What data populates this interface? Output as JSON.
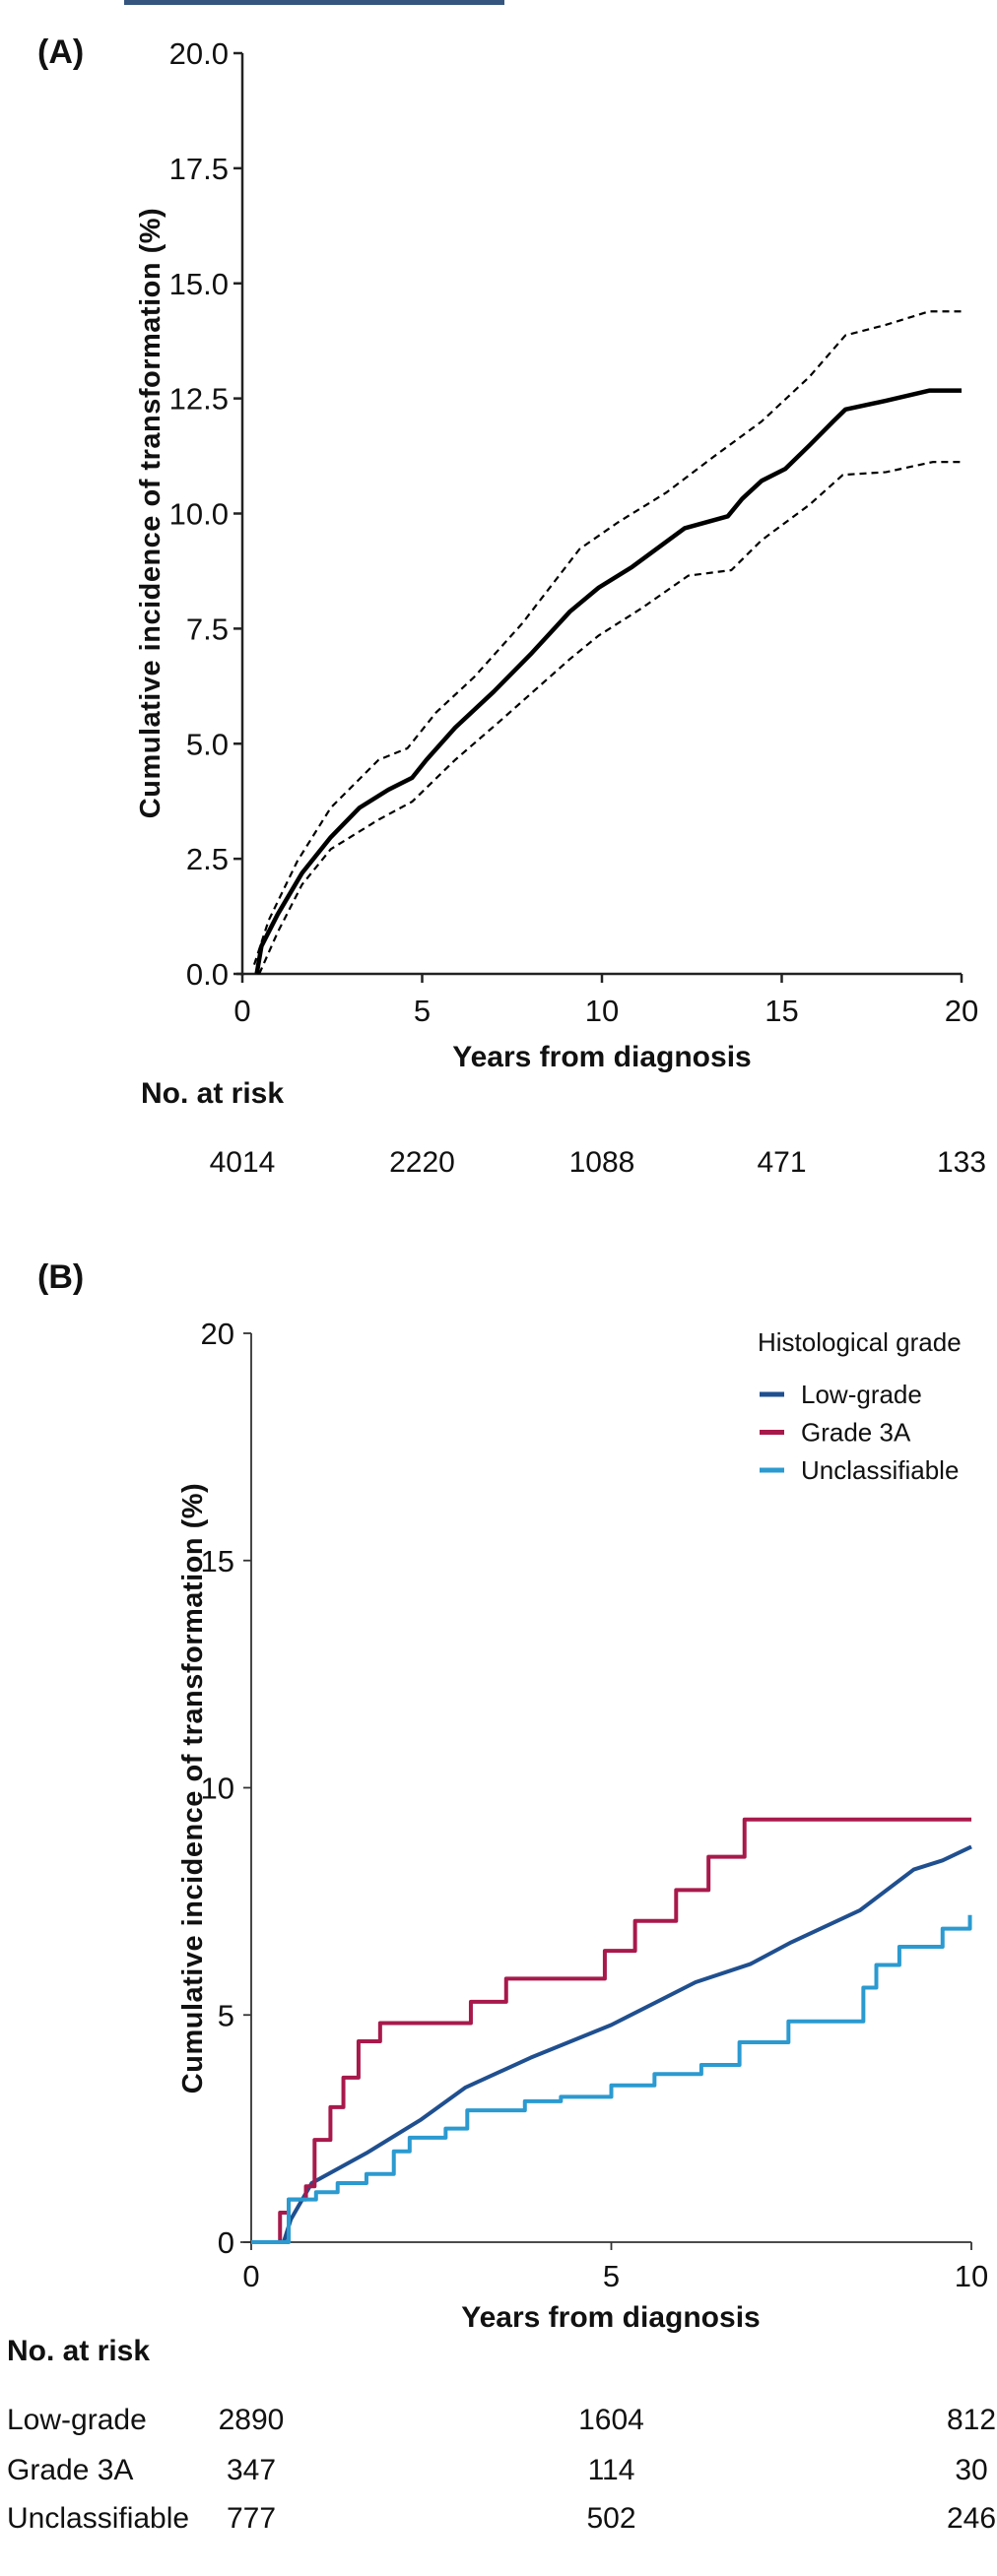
{
  "header_bar_color": "#35557f",
  "chart_data": [
    {
      "panel_label": "(A)",
      "type": "line",
      "xlabel": "Years from diagnosis",
      "ylabel": "Cumulative incidence of transformation (%)",
      "xlim": [
        0,
        20
      ],
      "ylim": [
        0,
        20
      ],
      "xticks": [
        "0",
        "5",
        "10",
        "15",
        "20"
      ],
      "xtick_values": [
        0,
        5,
        10,
        15,
        20
      ],
      "yticks": [
        "0.0",
        "2.5",
        "5.0",
        "7.5",
        "10.0",
        "12.5",
        "15.0",
        "17.5",
        "20.0"
      ],
      "ytick_values": [
        0,
        2.5,
        5,
        7.5,
        10,
        12.5,
        15,
        17.5,
        20
      ],
      "grid": false,
      "series": [
        {
          "style": "solid",
          "color": "#000000",
          "points": [
            [
              0.4,
              0
            ],
            [
              0.53,
              0.6
            ],
            [
              0.98,
              1.29
            ],
            [
              1.66,
              2.19
            ],
            [
              2.46,
              2.97
            ],
            [
              3.26,
              3.61
            ],
            [
              4.06,
              4.0
            ],
            [
              4.72,
              4.26
            ],
            [
              5.12,
              4.65
            ],
            [
              5.92,
              5.35
            ],
            [
              6.99,
              6.13
            ],
            [
              8.05,
              6.97
            ],
            [
              9.11,
              7.87
            ],
            [
              9.91,
              8.39
            ],
            [
              10.84,
              8.84
            ],
            [
              12.3,
              9.68
            ],
            [
              13.5,
              9.94
            ],
            [
              13.9,
              10.32
            ],
            [
              14.44,
              10.71
            ],
            [
              15.1,
              10.97
            ],
            [
              15.77,
              11.48
            ],
            [
              16.43,
              12.0
            ],
            [
              16.77,
              12.26
            ],
            [
              17.9,
              12.45
            ],
            [
              19.1,
              12.67
            ],
            [
              20,
              12.67
            ]
          ]
        },
        {
          "style": "dashed",
          "color": "#000000",
          "points": [
            [
              0.33,
              0.2
            ],
            [
              0.73,
              1.16
            ],
            [
              1.53,
              2.45
            ],
            [
              2.46,
              3.61
            ],
            [
              3.79,
              4.65
            ],
            [
              4.59,
              4.9
            ],
            [
              5.39,
              5.68
            ],
            [
              6.45,
              6.45
            ],
            [
              7.78,
              7.61
            ],
            [
              9.38,
              9.23
            ],
            [
              10.45,
              9.81
            ],
            [
              11.78,
              10.45
            ],
            [
              13.1,
              11.23
            ],
            [
              14.44,
              12.0
            ],
            [
              15.77,
              12.97
            ],
            [
              16.77,
              13.87
            ],
            [
              17.9,
              14.1
            ],
            [
              19.1,
              14.39
            ],
            [
              20,
              14.39
            ]
          ]
        },
        {
          "style": "dashed",
          "color": "#000000",
          "points": [
            [
              0.47,
              0
            ],
            [
              0.98,
              0.9
            ],
            [
              1.66,
              1.94
            ],
            [
              2.46,
              2.71
            ],
            [
              3.79,
              3.35
            ],
            [
              4.72,
              3.74
            ],
            [
              5.92,
              4.65
            ],
            [
              7.25,
              5.55
            ],
            [
              9.11,
              6.84
            ],
            [
              9.91,
              7.35
            ],
            [
              11.1,
              7.94
            ],
            [
              12.4,
              8.65
            ],
            [
              13.6,
              8.77
            ],
            [
              14.44,
              9.42
            ],
            [
              15.77,
              10.19
            ],
            [
              16.7,
              10.84
            ],
            [
              17.9,
              10.9
            ],
            [
              19.2,
              11.12
            ],
            [
              20,
              11.12
            ]
          ]
        }
      ],
      "risk_table": {
        "title": "No. at risk",
        "rows": [
          {
            "label": "",
            "values": [
              "4014",
              "2220",
              "1088",
              "471",
              "133"
            ]
          }
        ]
      }
    },
    {
      "panel_label": "(B)",
      "type": "line",
      "xlabel": "Years from diagnosis",
      "ylabel": "Cumulative incidence of transformation (%)",
      "xlim": [
        0,
        10
      ],
      "ylim": [
        0,
        20
      ],
      "xticks": [
        "0",
        "5",
        "10"
      ],
      "xtick_values": [
        0,
        5,
        10
      ],
      "yticks": [
        "0",
        "5",
        "10",
        "15",
        "20"
      ],
      "ytick_values": [
        0,
        5,
        10,
        15,
        20
      ],
      "grid": false,
      "legend": {
        "title": "Histological grade",
        "placement": "top-right"
      },
      "series": [
        {
          "name": "Low-grade",
          "color": "#1f4f8f",
          "style": "solid",
          "points": [
            [
              0,
              0
            ],
            [
              0.45,
              0
            ],
            [
              0.55,
              0.5
            ],
            [
              0.84,
              1.3
            ],
            [
              1.6,
              1.96
            ],
            [
              2.36,
              2.7
            ],
            [
              2.97,
              3.4
            ],
            [
              3.88,
              4.06
            ],
            [
              5.0,
              4.78
            ],
            [
              6.17,
              5.72
            ],
            [
              6.93,
              6.12
            ],
            [
              7.5,
              6.6
            ],
            [
              8.45,
              7.3
            ],
            [
              9.2,
              8.2
            ],
            [
              9.6,
              8.4
            ],
            [
              10,
              8.7
            ]
          ]
        },
        {
          "name": "Grade 3A",
          "color": "#a8194b",
          "style": "solid",
          "points": [
            [
              0,
              0
            ],
            [
              0.38,
              0
            ],
            [
              0.4,
              0.65
            ],
            [
              0.52,
              0.94
            ],
            [
              0.76,
              1.23
            ],
            [
              0.88,
              2.25
            ],
            [
              1.1,
              2.97
            ],
            [
              1.28,
              3.62
            ],
            [
              1.49,
              4.42
            ],
            [
              1.79,
              4.82
            ],
            [
              3.05,
              5.29
            ],
            [
              3.54,
              5.8
            ],
            [
              4.91,
              6.41
            ],
            [
              5.33,
              7.07
            ],
            [
              5.9,
              7.75
            ],
            [
              6.35,
              8.48
            ],
            [
              6.85,
              9.3
            ],
            [
              10,
              9.3
            ]
          ]
        },
        {
          "name": "Unclassifiable",
          "color": "#2b9ad0",
          "style": "solid",
          "points": [
            [
              0,
              0
            ],
            [
              0.5,
              0
            ],
            [
              0.52,
              0.94
            ],
            [
              0.9,
              1.1
            ],
            [
              1.2,
              1.3
            ],
            [
              1.6,
              1.5
            ],
            [
              1.98,
              2.0
            ],
            [
              2.2,
              2.3
            ],
            [
              2.7,
              2.5
            ],
            [
              3.0,
              2.9
            ],
            [
              3.8,
              3.1
            ],
            [
              4.3,
              3.2
            ],
            [
              5.0,
              3.45
            ],
            [
              5.6,
              3.7
            ],
            [
              6.25,
              3.9
            ],
            [
              6.78,
              4.4
            ],
            [
              7.46,
              4.86
            ],
            [
              8.5,
              5.6
            ],
            [
              8.68,
              6.1
            ],
            [
              9.0,
              6.5
            ],
            [
              9.6,
              6.9
            ],
            [
              9.98,
              7.2
            ]
          ]
        }
      ],
      "risk_table": {
        "title": "No. at risk",
        "rows": [
          {
            "label": "Low-grade",
            "values": [
              "2890",
              "1604",
              "812"
            ]
          },
          {
            "label": "Grade 3A",
            "values": [
              "347",
              "114",
              "30"
            ]
          },
          {
            "label": "Unclassifiable",
            "values": [
              "777",
              "502",
              "246"
            ]
          }
        ]
      }
    }
  ]
}
